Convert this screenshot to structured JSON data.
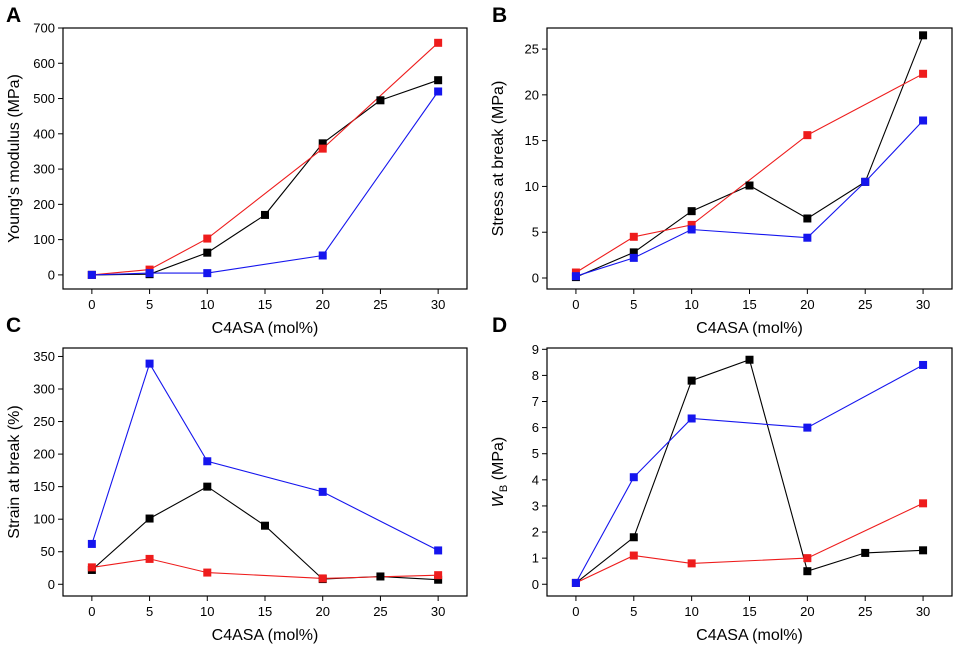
{
  "figure": {
    "colors": {
      "black": "#000000",
      "red": "#ee1c1c",
      "blue": "#1515ee"
    }
  },
  "chart_data": [
    {
      "panel": "A",
      "type": "line",
      "xlabel": "C4ASA (mol%)",
      "ylabel": "Young's modulus (MPa)",
      "xlim": [
        -2.5,
        32.5
      ],
      "ylim": [
        -40,
        700
      ],
      "xticks": [
        0,
        5,
        10,
        15,
        20,
        25,
        30
      ],
      "yticks": [
        0,
        100,
        200,
        300,
        400,
        500,
        600,
        700
      ],
      "series": [
        {
          "name": "black",
          "color": "#000000",
          "x": [
            0,
            5,
            10,
            15,
            20,
            25,
            30
          ],
          "y": [
            0,
            2,
            63,
            170,
            373,
            495,
            552
          ]
        },
        {
          "name": "red",
          "color": "#ee1c1c",
          "x": [
            0,
            5,
            10,
            20,
            30
          ],
          "y": [
            0,
            15,
            103,
            358,
            658
          ]
        },
        {
          "name": "blue",
          "color": "#1515ee",
          "x": [
            0,
            5,
            10,
            20,
            30
          ],
          "y": [
            0,
            5,
            5,
            55,
            520
          ]
        }
      ]
    },
    {
      "panel": "B",
      "type": "line",
      "xlabel": "C4ASA (mol%)",
      "ylabel": "Stress at break (MPa)",
      "xlim": [
        -2.5,
        32.5
      ],
      "ylim": [
        -1.2,
        27.3
      ],
      "xticks": [
        0,
        5,
        10,
        15,
        20,
        25,
        30
      ],
      "yticks": [
        0,
        5,
        10,
        15,
        20,
        25
      ],
      "series": [
        {
          "name": "black",
          "color": "#000000",
          "x": [
            0,
            5,
            10,
            15,
            20,
            25,
            30
          ],
          "y": [
            0.1,
            2.8,
            7.3,
            10.1,
            6.5,
            10.5,
            26.5
          ]
        },
        {
          "name": "red",
          "color": "#ee1c1c",
          "x": [
            0,
            5,
            10,
            20,
            30
          ],
          "y": [
            0.6,
            4.5,
            5.8,
            15.6,
            22.3
          ]
        },
        {
          "name": "blue",
          "color": "#1515ee",
          "x": [
            0,
            5,
            10,
            20,
            25,
            30
          ],
          "y": [
            0.2,
            2.2,
            5.3,
            4.4,
            10.5,
            17.2
          ]
        }
      ]
    },
    {
      "panel": "C",
      "type": "line",
      "xlabel": "C4ASA (mol%)",
      "ylabel": "Strain at break (%)",
      "xlim": [
        -2.5,
        32.5
      ],
      "ylim": [
        -18,
        363
      ],
      "xticks": [
        0,
        5,
        10,
        15,
        20,
        25,
        30
      ],
      "yticks": [
        0,
        50,
        100,
        150,
        200,
        250,
        300,
        350
      ],
      "series": [
        {
          "name": "black",
          "color": "#000000",
          "x": [
            0,
            5,
            10,
            15,
            20,
            25,
            30
          ],
          "y": [
            22,
            101,
            150,
            90,
            8,
            12,
            7
          ]
        },
        {
          "name": "red",
          "color": "#ee1c1c",
          "x": [
            0,
            5,
            10,
            20,
            30
          ],
          "y": [
            26,
            39,
            18,
            9,
            14
          ]
        },
        {
          "name": "blue",
          "color": "#1515ee",
          "x": [
            0,
            5,
            10,
            20,
            30
          ],
          "y": [
            62,
            339,
            189,
            142,
            52
          ]
        }
      ]
    },
    {
      "panel": "D",
      "type": "line",
      "xlabel": "C4ASA (mol%)",
      "ylabel": "W",
      "ylabel_subscript": "B",
      "ylabel_suffix": " (MPa)",
      "xlim": [
        -2.5,
        32.5
      ],
      "ylim": [
        -0.45,
        9.05
      ],
      "xticks": [
        0,
        5,
        10,
        15,
        20,
        25,
        30
      ],
      "yticks": [
        0,
        1,
        2,
        3,
        4,
        5,
        6,
        7,
        8,
        9
      ],
      "series": [
        {
          "name": "black",
          "color": "#000000",
          "x": [
            0,
            5,
            10,
            15,
            20,
            25,
            30
          ],
          "y": [
            0.05,
            1.8,
            7.8,
            8.6,
            0.5,
            1.2,
            1.3
          ]
        },
        {
          "name": "red",
          "color": "#ee1c1c",
          "x": [
            0,
            5,
            10,
            20,
            30
          ],
          "y": [
            0.05,
            1.1,
            0.8,
            1.0,
            3.1
          ]
        },
        {
          "name": "blue",
          "color": "#1515ee",
          "x": [
            0,
            5,
            10,
            20,
            30
          ],
          "y": [
            0.05,
            4.1,
            6.35,
            6.0,
            8.4
          ]
        }
      ]
    }
  ]
}
